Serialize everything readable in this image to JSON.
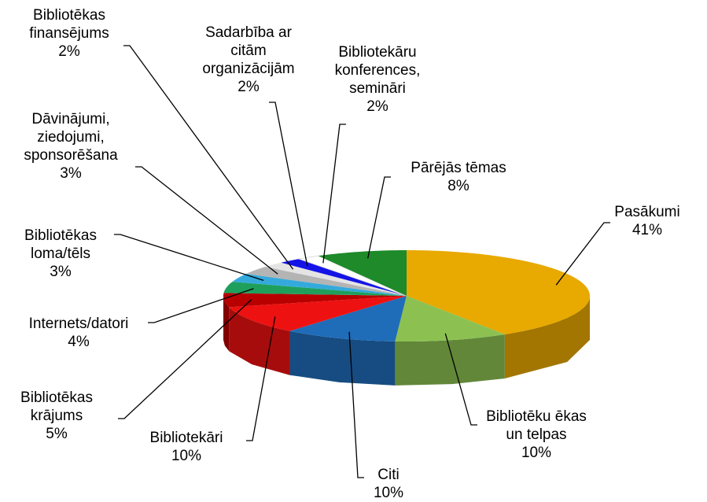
{
  "chart_data": {
    "type": "pie3d",
    "categories": [
      "Pasākumi",
      "Bibliotēku ēkas\nun telpas",
      "Citi",
      "Bibliotekāri",
      "Bibliotēkas\nkrājums",
      "Internets/datori",
      "Bibliotēkas\nloma/tēls",
      "Dāvinājumi,\nziedojumi,\nsponsorēšana",
      "Bibliotēkas\nfinansējums",
      "Sadarbība ar\ncitām\norganizācijām",
      "Bibliotekāru\nkonferences,\nsemināri",
      "Pārējās tēmas"
    ],
    "values": [
      41,
      10,
      10,
      10,
      5,
      4,
      3,
      3,
      2,
      2,
      2,
      8
    ],
    "value_labels": [
      "41%",
      "10%",
      "10%",
      "10%",
      "5%",
      "4%",
      "3%",
      "3%",
      "2%",
      "2%",
      "2%",
      "8%"
    ],
    "colors": [
      "#E8A900",
      "#8CC152",
      "#1F6CB8",
      "#EE1111",
      "#B80000",
      "#1EA05C",
      "#34AADC",
      "#B4B4B4",
      "#E4E4E4",
      "#1414E6",
      "#FFFFFF",
      "#1E8A2A"
    ]
  }
}
